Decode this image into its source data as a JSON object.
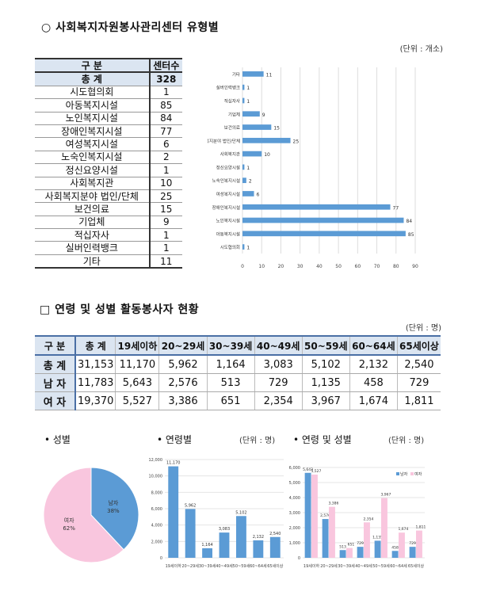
{
  "section1": {
    "bullet": "○",
    "title": "사회복지자원봉사관리센터 유형별",
    "unit": "(단위 : 개소)",
    "table": {
      "headers": [
        "구  분",
        "센터수"
      ],
      "rows": [
        [
          "총  계",
          "328"
        ],
        [
          "시도협의회",
          "1"
        ],
        [
          "아동복지시설",
          "85"
        ],
        [
          "노인복지시설",
          "84"
        ],
        [
          "장애인복지시설",
          "77"
        ],
        [
          "여성복지시설",
          "6"
        ],
        [
          "노숙인복지시설",
          "2"
        ],
        [
          "정신요양시설",
          "1"
        ],
        [
          "사회복지관",
          "10"
        ],
        [
          "사회복지분야 법인/단체",
          "25"
        ],
        [
          "보건의료",
          "15"
        ],
        [
          "기업체",
          "9"
        ],
        [
          "적십자사",
          "1"
        ],
        [
          "실버인력뱅크",
          "1"
        ],
        [
          "기타",
          "11"
        ]
      ]
    }
  },
  "chart_data": [
    {
      "type": "bar",
      "orientation": "horizontal",
      "categories": [
        "시도협의회",
        "아동복지시설",
        "노인복지시설",
        "장애인복지시설",
        "여성복지시설",
        "노숙인복지시설",
        "정신요양시설",
        "사회복지관",
        "사회복지분야 법인/단체",
        "보건의료",
        "기업체",
        "적십자사",
        "실버인력뱅크",
        "기타"
      ],
      "values": [
        1,
        85,
        84,
        77,
        6,
        2,
        1,
        10,
        25,
        15,
        9,
        1,
        1,
        11
      ],
      "xlim": [
        0,
        90
      ],
      "xticks": [
        "0",
        "10",
        "20",
        "30",
        "40",
        "50",
        "60",
        "70",
        "80",
        "90"
      ],
      "grid": true,
      "color": "#5b9bd5"
    },
    {
      "type": "pie",
      "title": "성별",
      "labels": [
        "남자",
        "여자"
      ],
      "values": [
        38,
        62
      ],
      "value_labels": [
        "38%",
        "62%"
      ],
      "colors": [
        "#5b9bd5",
        "#f9c6de"
      ]
    },
    {
      "type": "bar",
      "title": "연령별",
      "unit": "(단위 : 명)",
      "categories": [
        "19세이하",
        "20~29세",
        "30~39세",
        "40~49세",
        "50~59세",
        "60~64세",
        "65세이상"
      ],
      "values": [
        11170,
        5962,
        1164,
        3083,
        5102,
        2132,
        2540
      ],
      "value_labels": [
        "11,170",
        "5,962",
        "1,164",
        "3,083",
        "5,102",
        "2,132",
        "2,540"
      ],
      "ylim": [
        0,
        12000
      ],
      "yticks": [
        "0",
        "2,000",
        "4,000",
        "6,000",
        "8,000",
        "10,000",
        "12,000"
      ],
      "grid": true,
      "color": "#5b9bd5"
    },
    {
      "type": "bar",
      "title": "연령 및 성별",
      "unit": "(단위 : 명)",
      "categories": [
        "19세이하",
        "20~29세",
        "30~39세",
        "40~49세",
        "50~59세",
        "60~64세",
        "65세이상"
      ],
      "series": [
        {
          "name": "남자",
          "values": [
            5643,
            2576,
            513,
            729,
            1135,
            458,
            729
          ],
          "value_labels": [
            "5,643",
            "2,576",
            "513",
            "729",
            "1,135",
            "458",
            "729"
          ],
          "color": "#5b9bd5"
        },
        {
          "name": "여자",
          "values": [
            5527,
            3386,
            651,
            2354,
            3967,
            1674,
            1811
          ],
          "value_labels": [
            "5,527",
            "3,386",
            "651",
            "2,354",
            "3,967",
            "1,674",
            "1,811"
          ],
          "color": "#f9c6de"
        }
      ],
      "ylim": [
        0,
        6000
      ],
      "yticks": [
        "0",
        "1,000",
        "2,000",
        "3,000",
        "4,000",
        "5,000",
        "6,000"
      ],
      "legend": "top-right",
      "grid": true
    }
  ],
  "section2": {
    "bullet": "□",
    "title": "연령 및 성별 활동봉사자 현황",
    "unit": "(단위 : 명)",
    "table": {
      "headers": [
        "구 분",
        "총 계",
        "19세이하",
        "20~29세",
        "30~39세",
        "40~49세",
        "50~59세",
        "60~64세",
        "65세이상"
      ],
      "rows": [
        [
          "총 계",
          "31,153",
          "11,170",
          "5,962",
          "1,164",
          "3,083",
          "5,102",
          "2,132",
          "2,540"
        ],
        [
          "남 자",
          "11,783",
          "5,643",
          "2,576",
          "513",
          "729",
          "1,135",
          "458",
          "729"
        ],
        [
          "여 자",
          "19,370",
          "5,527",
          "3,386",
          "651",
          "2,354",
          "3,967",
          "1,674",
          "1,811"
        ]
      ]
    }
  },
  "charts_row": {
    "gender_label": "• 성별",
    "age_label": "• 연령별",
    "age_unit": "(단위 : 명)",
    "agegender_label": "• 연령 및 성별",
    "agegender_unit": "(단위 : 명)"
  }
}
